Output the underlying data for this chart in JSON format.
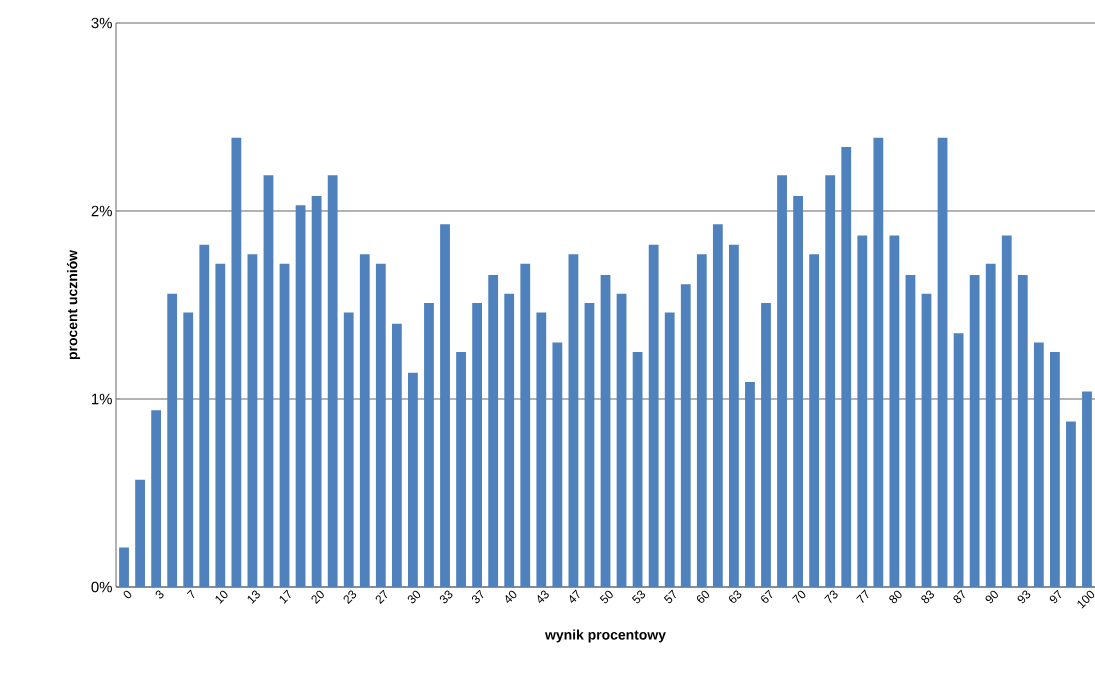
{
  "chart_data": {
    "type": "bar",
    "xlabel": "wynik procentowy",
    "ylabel": "procent uczniów",
    "categories": [
      "0",
      null,
      "3",
      null,
      "7",
      null,
      "10",
      null,
      "13",
      null,
      "17",
      null,
      "20",
      null,
      "23",
      null,
      "27",
      null,
      "30",
      null,
      "33",
      null,
      "37",
      null,
      "40",
      null,
      "43",
      null,
      "47",
      null,
      "50",
      null,
      "53",
      null,
      "57",
      null,
      "60",
      null,
      "63",
      null,
      "67",
      null,
      "70",
      null,
      "73",
      null,
      "77",
      null,
      "80",
      null,
      "83",
      null,
      "87",
      null,
      "90",
      null,
      "93",
      null,
      "97",
      null,
      "100"
    ],
    "values": [
      0.21,
      0.57,
      0.94,
      1.56,
      1.46,
      1.82,
      1.72,
      2.39,
      1.77,
      2.19,
      1.72,
      2.03,
      2.08,
      2.19,
      1.46,
      1.77,
      1.72,
      1.4,
      1.14,
      1.51,
      1.93,
      1.25,
      1.51,
      1.66,
      1.56,
      1.72,
      1.46,
      1.3,
      1.77,
      1.51,
      1.66,
      1.56,
      1.25,
      1.82,
      1.46,
      1.61,
      1.77,
      1.93,
      1.82,
      1.09,
      1.51,
      2.19,
      2.08,
      1.77,
      2.19,
      2.34,
      1.87,
      2.39,
      1.87,
      1.66,
      1.56,
      2.39,
      1.35,
      1.66,
      1.72,
      1.87,
      1.66,
      1.3,
      1.25,
      0.88,
      1.04
    ],
    "color": "#4f81bd",
    "ylim": [
      0,
      3
    ],
    "yticks": [
      {
        "value": 0,
        "label": "0%"
      },
      {
        "value": 1,
        "label": "1%"
      },
      {
        "value": 2,
        "label": "2%"
      },
      {
        "value": 3,
        "label": "3%"
      }
    ],
    "grid": "y"
  }
}
